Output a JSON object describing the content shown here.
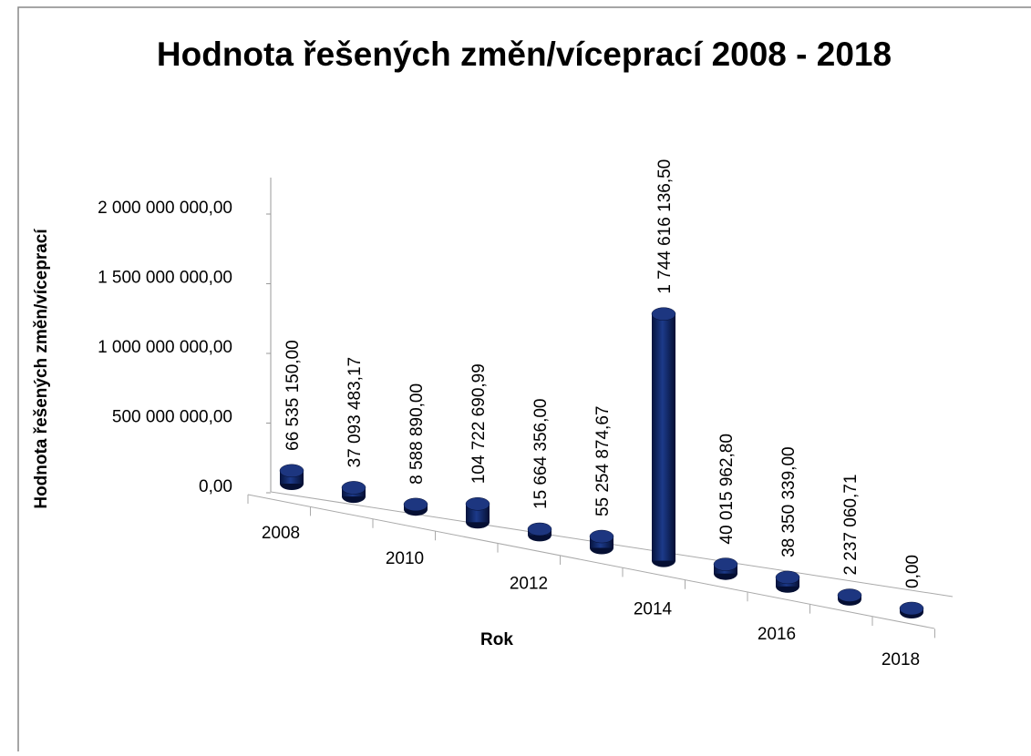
{
  "chart_data": {
    "type": "cylinder",
    "title": "Hodnota řešených změn/víceprací 2008 - 2018",
    "x_label": "Rok",
    "y_label": "Hodnota řešených změn/víceprací",
    "categories": [
      "2008",
      null,
      "2010",
      null,
      "2012",
      null,
      "2014",
      null,
      "2016",
      null,
      "2018"
    ],
    "values": [
      66535150.0,
      37093483.17,
      8588890.0,
      104722690.99,
      15664356.0,
      55254874.67,
      1744616136.5,
      40015962.8,
      38350339.0,
      2237060.71,
      0.0
    ],
    "value_labels": [
      "66 535 150,00",
      "37 093 483,17",
      "8 588 890,00",
      "104 722 690,99",
      "15 664 356,00",
      "55 254 874,67",
      "1 744 616 136,50",
      "40 015 962,80",
      "38 350 339,00",
      "2 237 060,71",
      "0,00"
    ],
    "color": "#0b1f5c",
    "ylim": [
      0,
      2000000000
    ],
    "yticks": [
      {
        "value": 0,
        "label": "0,00"
      },
      {
        "value": 500000000,
        "label": "500 000 000,00"
      },
      {
        "value": 1000000000,
        "label": "1 000 000 000,00"
      },
      {
        "value": 1500000000,
        "label": "1 500 000 000,00"
      },
      {
        "value": 2000000000,
        "label": "2 000 000 000,00"
      }
    ]
  }
}
